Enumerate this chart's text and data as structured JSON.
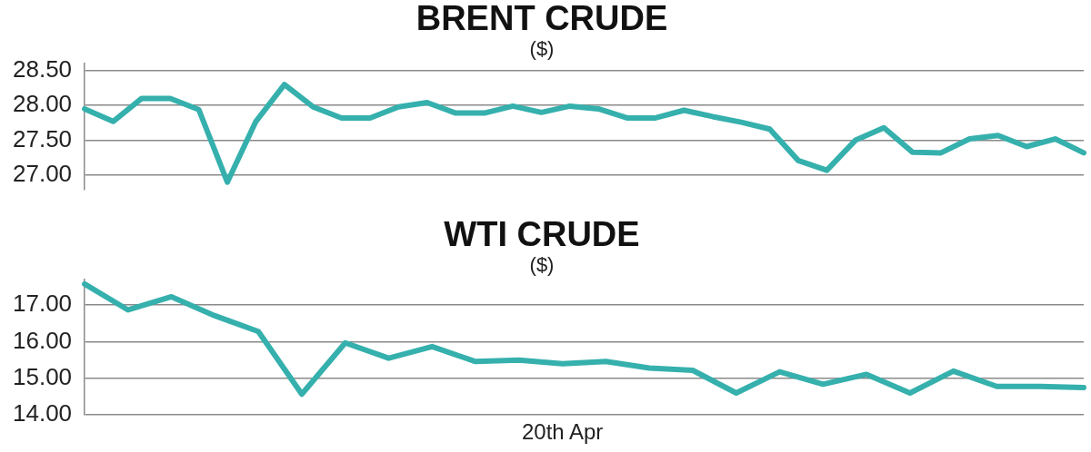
{
  "chart_data": [
    {
      "type": "line",
      "title": "BRENT CRUDE",
      "subtitle": "($)",
      "categories": [
        null,
        null,
        null,
        null,
        null,
        null,
        null,
        null,
        null,
        null,
        null,
        null,
        null,
        null,
        null,
        null,
        null,
        null,
        null,
        null,
        null,
        null,
        null,
        null,
        null,
        null,
        null,
        null,
        null,
        null,
        null,
        null,
        null,
        null,
        null,
        null
      ],
      "series": [
        {
          "color": "#35b0ad",
          "values": [
            27.95,
            27.77,
            28.1,
            28.1,
            27.94,
            26.9,
            27.77,
            28.3,
            27.98,
            27.82,
            27.82,
            27.98,
            28.04,
            27.89,
            27.89,
            27.99,
            27.9,
            27.99,
            27.95,
            27.82,
            27.82,
            27.93,
            27.84,
            27.76,
            27.66,
            27.21,
            27.07,
            27.5,
            27.68,
            27.33,
            27.32,
            27.52,
            27.57,
            27.41,
            27.52,
            27.32
          ]
        }
      ],
      "ylim": [
        26.8,
        28.6
      ],
      "yticks": [
        {
          "value": 27,
          "label": "27.00"
        },
        {
          "value": 27.5,
          "label": "27.50"
        },
        {
          "value": 28,
          "label": "28.00"
        },
        {
          "value": 28.5,
          "label": "28.50"
        }
      ],
      "grid": "y",
      "tick_labels": "y",
      "marker": "none"
    },
    {
      "type": "line",
      "title": "WTI CRUDE",
      "subtitle": "($)",
      "categories": [
        null,
        null,
        null,
        null,
        null,
        null,
        null,
        null,
        null,
        null,
        null,
        "20th Apr",
        null,
        null,
        null,
        null,
        null,
        null,
        null,
        null,
        null,
        null,
        null,
        null
      ],
      "series": [
        {
          "color": "#35b0ad",
          "values": [
            17.58,
            16.87,
            17.23,
            16.71,
            16.28,
            14.57,
            15.97,
            15.55,
            15.87,
            15.46,
            15.5,
            15.4,
            15.46,
            15.28,
            15.22,
            14.6,
            15.18,
            14.84,
            15.11,
            14.6,
            15.2,
            14.78,
            14.78,
            14.75
          ]
        }
      ],
      "ylim": [
        14,
        17.7
      ],
      "yticks": [
        {
          "value": 14,
          "label": "14.00"
        },
        {
          "value": 15,
          "label": "15.00"
        },
        {
          "value": 16,
          "label": "16.00"
        },
        {
          "value": 17,
          "label": "17.00"
        }
      ],
      "grid": "y",
      "marker": "none"
    }
  ]
}
